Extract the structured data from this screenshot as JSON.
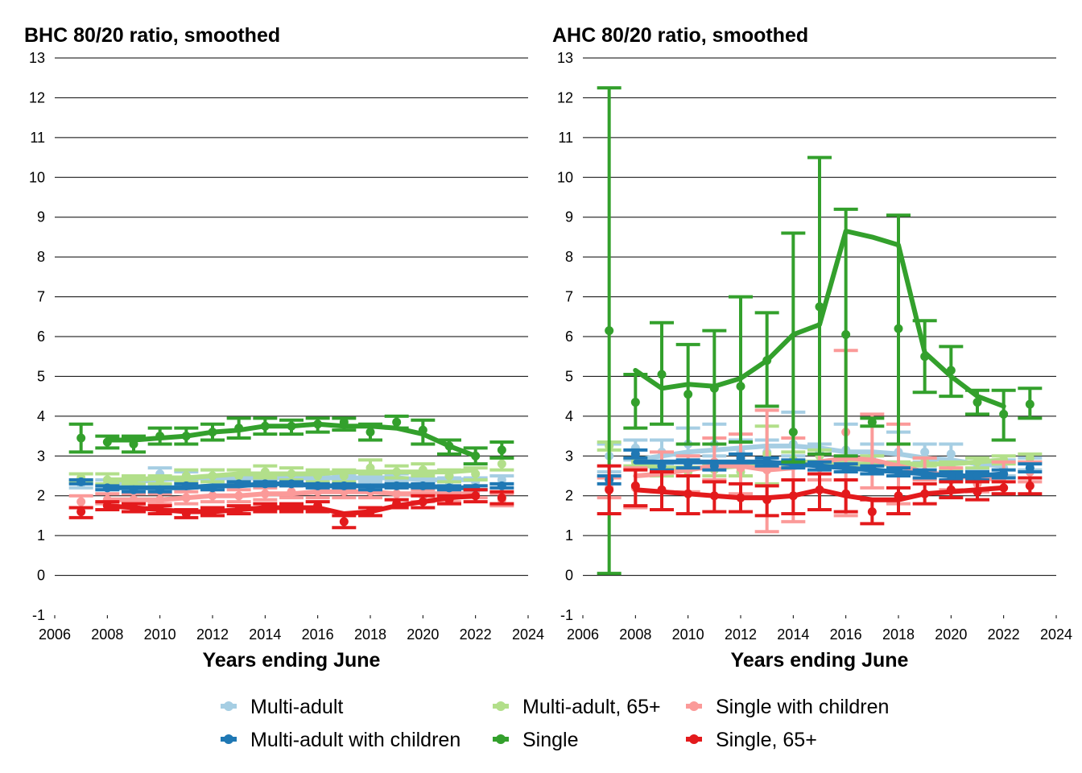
{
  "legend": [
    {
      "name": "Multi-adult",
      "color": "#a6cee3"
    },
    {
      "name": "Multi-adult, 65+",
      "color": "#b2df8a"
    },
    {
      "name": "Single with children",
      "color": "#fb9a99"
    },
    {
      "name": "Multi-adult with children",
      "color": "#1f78b4"
    },
    {
      "name": "Single",
      "color": "#33a02c"
    },
    {
      "name": "Single, 65+",
      "color": "#e31a1c"
    }
  ],
  "chart_data": [
    {
      "type": "line",
      "title": "BHC 80/20 ratio, smoothed",
      "xlabel": "Years ending June",
      "ylabel": "",
      "xlim": [
        2006,
        2024
      ],
      "ylim": [
        -1,
        13
      ],
      "xticks": [
        "2006",
        "2008",
        "2010",
        "2012",
        "2014",
        "2016",
        "2018",
        "2020",
        "2022",
        "2024"
      ],
      "yticks": [
        "-1",
        "0",
        "1",
        "2",
        "3",
        "4",
        "5",
        "6",
        "7",
        "8",
        "9",
        "10",
        "11",
        "12",
        "13"
      ],
      "grid": "horizontal",
      "x": [
        2007,
        2008,
        2009,
        2010,
        2011,
        2012,
        2013,
        2014,
        2015,
        2016,
        2017,
        2018,
        2019,
        2020,
        2021,
        2022,
        2023
      ],
      "series": [
        {
          "name": "Multi-adult",
          "color": "#a6cee3",
          "point": [
            2.3,
            2.3,
            2.3,
            2.55,
            2.5,
            2.5,
            2.4,
            2.4,
            2.45,
            2.4,
            2.4,
            2.45,
            2.45,
            2.45,
            2.35,
            2.35,
            2.4
          ],
          "ci_low": [
            2.2,
            2.2,
            2.2,
            2.4,
            2.4,
            2.4,
            2.3,
            2.3,
            2.35,
            2.3,
            2.3,
            2.35,
            2.35,
            2.3,
            2.25,
            2.25,
            2.3
          ],
          "ci_high": [
            2.4,
            2.4,
            2.4,
            2.7,
            2.6,
            2.65,
            2.5,
            2.5,
            2.55,
            2.5,
            2.5,
            2.55,
            2.55,
            2.6,
            2.45,
            2.45,
            2.5
          ],
          "smoothed": [
            null,
            2.3,
            2.35,
            2.4,
            2.45,
            2.45,
            2.45,
            2.45,
            2.45,
            2.45,
            2.45,
            2.45,
            2.45,
            2.4,
            2.4,
            2.4,
            null
          ]
        },
        {
          "name": "Multi-adult, 65+",
          "color": "#b2df8a",
          "point": [
            2.45,
            2.4,
            2.4,
            2.4,
            2.5,
            2.5,
            2.5,
            2.6,
            2.55,
            2.5,
            2.5,
            2.7,
            2.6,
            2.65,
            2.5,
            2.55,
            2.8
          ],
          "ci_low": [
            2.35,
            2.3,
            2.3,
            2.3,
            2.35,
            2.35,
            2.35,
            2.45,
            2.4,
            2.35,
            2.35,
            2.55,
            2.45,
            2.5,
            2.35,
            2.4,
            2.65
          ],
          "ci_high": [
            2.55,
            2.55,
            2.5,
            2.5,
            2.65,
            2.65,
            2.65,
            2.75,
            2.7,
            2.65,
            2.65,
            2.9,
            2.75,
            2.8,
            2.65,
            2.7,
            2.95
          ],
          "smoothed": [
            null,
            2.4,
            2.4,
            2.45,
            2.45,
            2.5,
            2.55,
            2.55,
            2.55,
            2.55,
            2.6,
            2.6,
            2.6,
            2.6,
            2.6,
            2.65,
            null
          ]
        },
        {
          "name": "Single with children",
          "color": "#fb9a99",
          "point": [
            1.85,
            1.9,
            1.9,
            1.9,
            1.95,
            2.0,
            2.0,
            2.05,
            2.1,
            2.1,
            2.1,
            2.1,
            2.05,
            2.0,
            2.0,
            2.1,
            1.9
          ],
          "ci_low": [
            1.7,
            1.8,
            1.8,
            1.8,
            1.8,
            1.85,
            1.85,
            1.9,
            1.95,
            1.95,
            1.95,
            1.95,
            1.9,
            1.85,
            1.85,
            1.95,
            1.75
          ],
          "ci_high": [
            2.0,
            2.05,
            2.05,
            2.05,
            2.1,
            2.15,
            2.15,
            2.2,
            2.25,
            2.25,
            2.25,
            2.25,
            2.2,
            2.15,
            2.15,
            2.25,
            2.05
          ],
          "smoothed": [
            null,
            1.9,
            1.9,
            1.9,
            1.95,
            2.0,
            2.0,
            2.05,
            2.05,
            2.1,
            2.1,
            2.1,
            2.05,
            2.05,
            2.05,
            2.05,
            null
          ]
        },
        {
          "name": "Multi-adult with children",
          "color": "#1f78b4",
          "point": [
            2.35,
            2.2,
            2.15,
            2.15,
            2.25,
            2.2,
            2.3,
            2.3,
            2.3,
            2.25,
            2.25,
            2.2,
            2.25,
            2.25,
            2.2,
            2.2,
            2.25
          ],
          "ci_low": [
            2.3,
            2.15,
            2.1,
            2.1,
            2.2,
            2.15,
            2.25,
            2.25,
            2.25,
            2.2,
            2.2,
            2.15,
            2.2,
            2.2,
            2.15,
            2.15,
            2.2
          ],
          "ci_high": [
            2.4,
            2.25,
            2.2,
            2.2,
            2.3,
            2.25,
            2.35,
            2.35,
            2.35,
            2.3,
            2.3,
            2.25,
            2.3,
            2.3,
            2.25,
            2.25,
            2.3
          ],
          "smoothed": [
            null,
            2.2,
            2.2,
            2.2,
            2.2,
            2.25,
            2.25,
            2.3,
            2.3,
            2.25,
            2.25,
            2.25,
            2.25,
            2.25,
            2.2,
            2.2,
            null
          ]
        },
        {
          "name": "Single",
          "color": "#33a02c",
          "point": [
            3.45,
            3.35,
            3.3,
            3.5,
            3.5,
            3.6,
            3.7,
            3.75,
            3.75,
            3.8,
            3.85,
            3.6,
            3.85,
            3.65,
            3.25,
            3.0,
            3.15
          ],
          "ci_low": [
            3.1,
            3.2,
            3.1,
            3.3,
            3.3,
            3.4,
            3.45,
            3.55,
            3.55,
            3.6,
            3.65,
            3.4,
            3.7,
            3.3,
            3.05,
            2.8,
            2.95
          ],
          "ci_high": [
            3.8,
            3.5,
            3.5,
            3.7,
            3.7,
            3.8,
            3.95,
            3.95,
            3.9,
            3.95,
            3.95,
            3.8,
            4.0,
            3.9,
            3.4,
            3.2,
            3.35
          ],
          "smoothed": [
            null,
            3.4,
            3.4,
            3.45,
            3.5,
            3.6,
            3.65,
            3.75,
            3.75,
            3.8,
            3.75,
            3.75,
            3.7,
            3.55,
            3.25,
            3.0,
            null
          ]
        },
        {
          "name": "Single, 65+",
          "color": "#e31a1c",
          "point": [
            1.6,
            1.75,
            1.7,
            1.65,
            1.55,
            1.6,
            1.65,
            1.7,
            1.7,
            1.75,
            1.35,
            1.6,
            1.8,
            1.85,
            1.9,
            2.0,
            1.95
          ],
          "ci_low": [
            1.45,
            1.65,
            1.6,
            1.55,
            1.45,
            1.5,
            1.55,
            1.6,
            1.6,
            1.6,
            1.2,
            1.5,
            1.7,
            1.7,
            1.8,
            1.85,
            1.8
          ],
          "ci_high": [
            1.7,
            1.85,
            1.8,
            1.75,
            1.65,
            1.7,
            1.75,
            1.8,
            1.8,
            1.85,
            1.5,
            1.7,
            1.9,
            2.0,
            2.0,
            2.15,
            2.1
          ],
          "smoothed": [
            null,
            1.75,
            1.7,
            1.65,
            1.6,
            1.6,
            1.65,
            1.7,
            1.7,
            1.7,
            1.55,
            1.6,
            1.75,
            1.85,
            1.95,
            2.0,
            null
          ]
        }
      ]
    },
    {
      "type": "line",
      "title": "AHC 80/20 ratio, smoothed",
      "xlabel": "Years ending June",
      "ylabel": "",
      "xlim": [
        2006,
        2024
      ],
      "ylim": [
        -1,
        13
      ],
      "xticks": [
        "2006",
        "2008",
        "2010",
        "2012",
        "2014",
        "2016",
        "2018",
        "2020",
        "2022",
        "2024"
      ],
      "yticks": [
        "-1",
        "0",
        "1",
        "2",
        "3",
        "4",
        "5",
        "6",
        "7",
        "8",
        "9",
        "10",
        "11",
        "12",
        "13"
      ],
      "grid": "horizontal",
      "x": [
        2007,
        2008,
        2009,
        2010,
        2011,
        2012,
        2013,
        2014,
        2015,
        2016,
        2017,
        2018,
        2019,
        2020,
        2021,
        2022,
        2023
      ],
      "series": [
        {
          "name": "Multi-adult",
          "color": "#a6cee3",
          "point": [
            3.0,
            3.2,
            3.1,
            3.3,
            3.3,
            3.1,
            3.1,
            3.3,
            3.1,
            3.15,
            3.0,
            3.1,
            3.1,
            3.05,
            2.8,
            2.7,
            2.8
          ],
          "ci_low": [
            2.6,
            2.9,
            2.8,
            3.0,
            3.0,
            2.8,
            2.8,
            3.0,
            2.85,
            2.85,
            2.75,
            2.85,
            2.85,
            2.8,
            2.65,
            2.5,
            2.65
          ],
          "ci_high": [
            3.3,
            3.4,
            3.4,
            3.7,
            3.8,
            3.4,
            3.4,
            4.1,
            3.3,
            3.8,
            3.3,
            3.6,
            3.3,
            3.3,
            2.95,
            2.9,
            2.95
          ],
          "smoothed": [
            null,
            2.9,
            3.0,
            3.1,
            3.15,
            3.2,
            3.25,
            3.25,
            3.2,
            3.1,
            3.1,
            3.05,
            2.95,
            2.9,
            2.8,
            2.75,
            null
          ]
        },
        {
          "name": "Multi-adult, 65+",
          "color": "#b2df8a",
          "point": [
            3.25,
            2.85,
            2.6,
            2.6,
            2.65,
            2.6,
            3.05,
            2.9,
            3.0,
            2.75,
            2.85,
            2.7,
            2.85,
            2.75,
            2.85,
            2.9,
            2.95
          ],
          "ci_low": [
            3.15,
            2.75,
            2.5,
            2.5,
            2.5,
            2.5,
            2.3,
            2.75,
            2.85,
            2.6,
            2.75,
            2.6,
            2.75,
            2.65,
            2.7,
            2.8,
            2.85
          ],
          "ci_high": [
            3.35,
            2.95,
            2.7,
            2.7,
            2.8,
            2.75,
            3.75,
            3.1,
            3.15,
            2.9,
            3.0,
            2.85,
            2.95,
            2.85,
            2.95,
            3.0,
            3.05
          ],
          "smoothed": [
            null,
            2.8,
            2.7,
            2.7,
            2.7,
            2.75,
            2.8,
            2.85,
            2.85,
            2.8,
            2.8,
            2.8,
            2.8,
            2.8,
            2.85,
            2.9,
            null
          ]
        },
        {
          "name": "Single with children",
          "color": "#fb9a99",
          "point": [
            2.2,
            2.2,
            2.6,
            2.7,
            2.85,
            2.7,
            2.65,
            2.8,
            2.7,
            3.6,
            2.7,
            2.7,
            2.6,
            2.4,
            2.3,
            2.5,
            2.6
          ],
          "ci_low": [
            1.95,
            1.7,
            2.1,
            2.1,
            2.4,
            2.05,
            1.1,
            1.35,
            2.4,
            1.5,
            2.2,
            1.8,
            2.4,
            2.15,
            2.1,
            2.05,
            2.35
          ],
          "ci_high": [
            2.45,
            2.7,
            3.1,
            3.0,
            3.45,
            3.55,
            4.15,
            3.45,
            3.05,
            5.65,
            4.05,
            3.8,
            2.95,
            2.7,
            2.6,
            2.85,
            2.85
          ],
          "smoothed": [
            null,
            2.5,
            2.55,
            2.65,
            2.75,
            2.75,
            2.65,
            2.7,
            2.85,
            2.95,
            2.9,
            2.75,
            2.6,
            2.5,
            2.45,
            2.4,
            null
          ]
        },
        {
          "name": "Multi-adult with children",
          "color": "#1f78b4",
          "point": [
            2.4,
            3.05,
            2.75,
            2.8,
            2.75,
            2.95,
            2.85,
            2.8,
            2.75,
            2.7,
            2.65,
            2.6,
            2.55,
            2.5,
            2.5,
            2.55,
            2.7
          ],
          "ci_low": [
            2.3,
            2.95,
            2.65,
            2.7,
            2.65,
            2.85,
            2.75,
            2.7,
            2.65,
            2.6,
            2.55,
            2.5,
            2.45,
            2.4,
            2.4,
            2.45,
            2.6
          ],
          "ci_high": [
            2.5,
            3.15,
            2.85,
            2.9,
            2.85,
            3.05,
            2.95,
            2.9,
            2.85,
            2.8,
            2.75,
            2.7,
            2.65,
            2.6,
            2.6,
            2.65,
            2.8
          ],
          "smoothed": [
            null,
            2.85,
            2.85,
            2.85,
            2.85,
            2.85,
            2.85,
            2.8,
            2.75,
            2.7,
            2.65,
            2.6,
            2.55,
            2.5,
            2.5,
            2.55,
            null
          ]
        },
        {
          "name": "Single",
          "color": "#33a02c",
          "point": [
            6.15,
            4.35,
            5.05,
            4.55,
            4.7,
            4.75,
            5.4,
            3.6,
            6.75,
            6.05,
            3.85,
            6.2,
            5.5,
            5.15,
            4.35,
            4.05,
            4.3
          ],
          "ci_low": [
            0.05,
            3.7,
            3.8,
            3.3,
            3.3,
            3.35,
            4.25,
            2.85,
            3.05,
            3.0,
            3.75,
            3.3,
            4.6,
            4.5,
            4.05,
            3.4,
            3.95
          ],
          "ci_high": [
            12.25,
            5.05,
            6.35,
            5.8,
            6.15,
            7.0,
            6.6,
            8.6,
            10.5,
            9.2,
            3.95,
            9.05,
            6.4,
            5.75,
            4.65,
            4.65,
            4.7
          ],
          "smoothed": [
            null,
            5.15,
            4.7,
            4.8,
            4.75,
            4.95,
            5.4,
            6.05,
            6.3,
            8.65,
            8.5,
            8.3,
            5.6,
            5.0,
            4.5,
            4.25,
            null
          ]
        },
        {
          "name": "Single, 65+",
          "color": "#e31a1c",
          "point": [
            2.15,
            2.25,
            2.15,
            2.05,
            2.0,
            1.95,
            1.9,
            2.0,
            2.15,
            2.05,
            1.6,
            2.0,
            2.05,
            2.15,
            2.1,
            2.2,
            2.25
          ],
          "ci_low": [
            1.55,
            1.75,
            1.65,
            1.55,
            1.6,
            1.6,
            1.5,
            1.55,
            1.65,
            1.6,
            1.3,
            1.55,
            1.8,
            1.95,
            1.9,
            2.05,
            2.05
          ],
          "ci_high": [
            2.75,
            2.65,
            2.6,
            2.5,
            2.35,
            2.3,
            2.25,
            2.4,
            2.55,
            2.4,
            1.9,
            2.2,
            2.3,
            2.35,
            2.35,
            2.35,
            2.45
          ],
          "smoothed": [
            null,
            2.15,
            2.1,
            2.05,
            2.0,
            1.95,
            1.95,
            2.0,
            2.15,
            2.0,
            1.9,
            1.9,
            2.05,
            2.1,
            2.15,
            2.2,
            null
          ]
        }
      ]
    }
  ]
}
